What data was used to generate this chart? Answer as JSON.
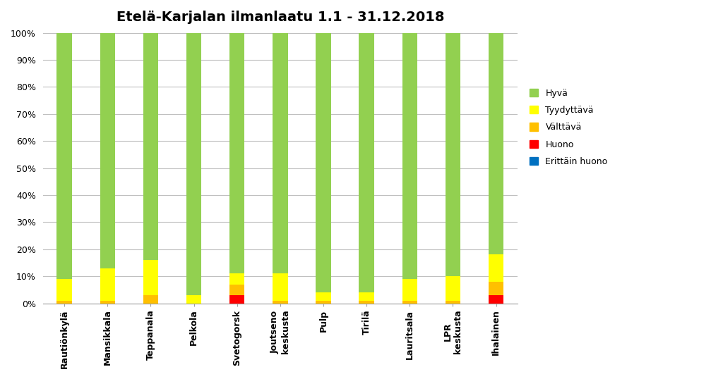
{
  "title": "Etelä-Karjalan ilmanlaatu 1.1 - 31.12.2018",
  "categories": [
    "Rautiönkylä",
    "Mansikkala",
    "Teppanala",
    "Pelkola",
    "Svetogorsk",
    "Joutseno\nkeskusta",
    "Pulp",
    "Tirilä",
    "Lauritsala",
    "LPR\nkeskusta",
    "Ihalainen"
  ],
  "series": {
    "Hyvä": [
      91,
      87,
      84,
      97,
      89,
      89,
      96,
      96,
      91,
      90,
      82
    ],
    "Tyydyttävä": [
      8,
      12,
      13,
      3,
      4,
      10,
      3,
      3,
      8,
      9,
      10
    ],
    "Välttävä": [
      1,
      1,
      3,
      0,
      4,
      1,
      1,
      1,
      1,
      1,
      5
    ],
    "Huono": [
      0,
      0,
      0,
      0,
      3,
      0,
      0,
      0,
      0,
      0,
      3
    ],
    "Erittäin huono": [
      0,
      0,
      0,
      0,
      0,
      0,
      0,
      0,
      0,
      0,
      0
    ]
  },
  "colors": {
    "Hyvä": "#92D050",
    "Tyydyttävä": "#FFFF00",
    "Välttävä": "#FFC000",
    "Huono": "#FF0000",
    "Erittäin huono": "#0070C0"
  },
  "ylim": [
    0,
    100
  ],
  "ytick_vals": [
    0,
    10,
    20,
    30,
    40,
    50,
    60,
    70,
    80,
    90,
    100
  ],
  "ytick_labels": [
    "0%",
    "10%",
    "20%",
    "30%",
    "40%",
    "50%",
    "60%",
    "70%",
    "80%",
    "90%",
    "100%"
  ],
  "background_color": "#FFFFFF",
  "grid_color": "#C0C0C0",
  "title_fontsize": 14,
  "bar_width": 0.35
}
